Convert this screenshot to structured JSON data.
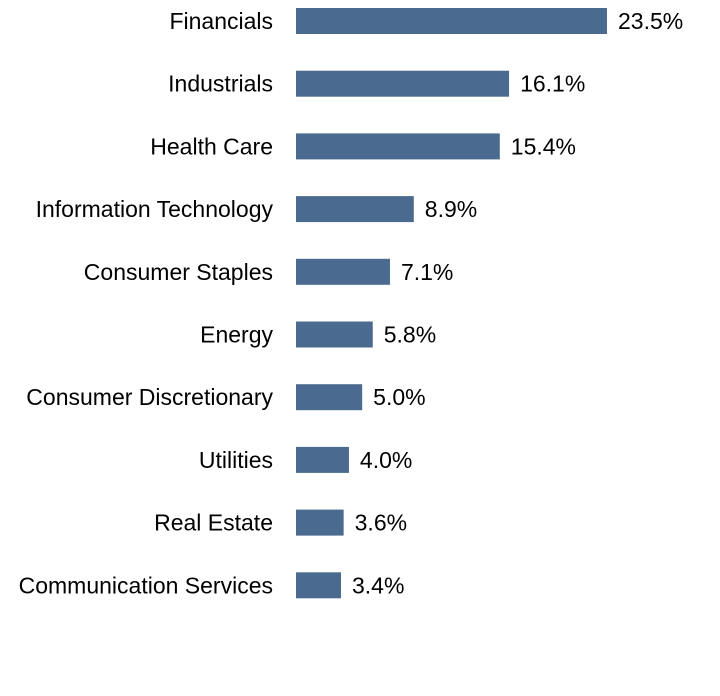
{
  "chart_data": {
    "type": "bar",
    "orientation": "horizontal",
    "title": "",
    "xlabel": "",
    "ylabel": "",
    "unit": "%",
    "xlim": [
      0,
      23.5
    ],
    "grid": false,
    "categories": [
      "Financials",
      "Industrials",
      "Health Care",
      "Information Technology",
      "Consumer Staples",
      "Energy",
      "Consumer Discretionary",
      "Utilities",
      "Real Estate",
      "Communication Services"
    ],
    "values": [
      23.5,
      16.1,
      15.4,
      8.9,
      7.1,
      5.8,
      5.0,
      4.0,
      3.6,
      3.4
    ],
    "value_labels": [
      "23.5%",
      "16.1%",
      "15.4%",
      "8.9%",
      "7.1%",
      "5.8%",
      "5.0%",
      "4.0%",
      "3.6%",
      "3.4%"
    ],
    "bar_color": "#4a6b8f"
  }
}
